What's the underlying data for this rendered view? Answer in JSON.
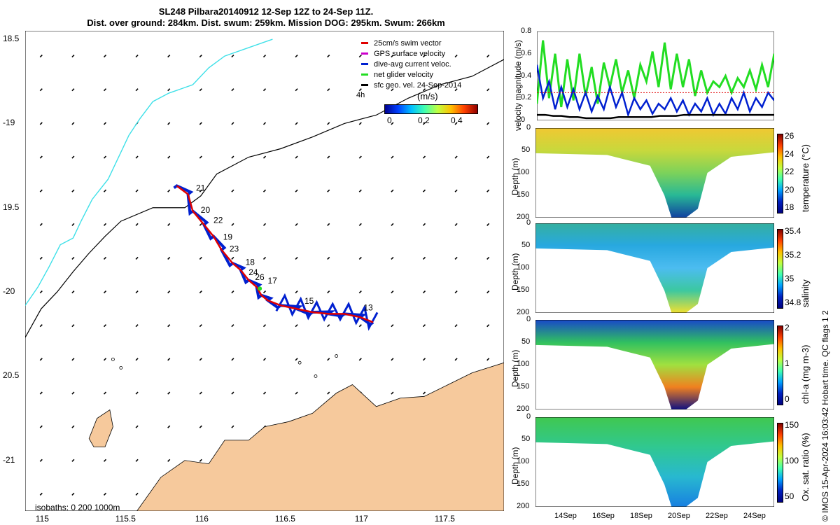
{
  "title_line1": "SL248 Pilbara20140912 12-Sep 12Z to 24-Sep 11Z.",
  "title_line2": "Dist. over ground: 284km. Dist. swum: 259km. Mission DOG: 295km. Swum: 266km",
  "copyright": "© IMOS 15-Apr-2024 16:03:42 Hobart time. QC flags 1  2",
  "colors": {
    "land": "#f6c99c",
    "track": "#e00000",
    "current": "#0020d0",
    "net": "#22dd22",
    "cyan": "#3ee0e8",
    "ocean": "#ffffff"
  },
  "chart_data": [
    {
      "type": "map",
      "name": "track-map",
      "xlim": [
        114.9,
        117.9
      ],
      "ylim": [
        -21.3,
        -18.45
      ],
      "xticks": [
        115,
        115.5,
        116,
        116.5,
        117,
        117.5
      ],
      "xtick_labels": [
        "115",
        "115.5",
        "116",
        "116.5",
        "117",
        "117.5"
      ],
      "yticks": [
        -18.5,
        -19,
        -19.5,
        -20,
        -20.5,
        -21
      ],
      "ytick_labels": [
        "18.5",
        "-19",
        "19.5",
        "-20",
        "20.5",
        "-21"
      ],
      "legend": {
        "placement": "top-right",
        "entries": [
          {
            "label": "25cm/s swim vector",
            "color": "#e00000"
          },
          {
            "label": "GPS surface velocity",
            "color": "#cc00cc"
          },
          {
            "label": "dive-avg current veloc.",
            "color": "#0020d0"
          },
          {
            "label": "net glider velocity",
            "color": "#22dd22"
          },
          {
            "label": "sfc geo. vel. 24-Sep-2014",
            "color": "#000000"
          }
        ],
        "note": "4h"
      },
      "colorbar": {
        "label": "(m/s)",
        "ticks": [
          "0",
          "0.2",
          "0.4"
        ],
        "range": [
          -0.05,
          0.5
        ]
      },
      "isobath_label": "isobaths: 0   200  1000m",
      "track": [
        [
          115.85,
          -19.37
        ],
        [
          115.92,
          -19.42
        ],
        [
          115.95,
          -19.52
        ],
        [
          116.02,
          -19.6
        ],
        [
          116.08,
          -19.67
        ],
        [
          116.13,
          -19.75
        ],
        [
          116.2,
          -19.83
        ],
        [
          116.25,
          -19.87
        ],
        [
          116.3,
          -19.93
        ],
        [
          116.35,
          -19.97
        ],
        [
          116.38,
          -20.02
        ],
        [
          116.42,
          -20.05
        ],
        [
          116.5,
          -20.08
        ],
        [
          116.6,
          -20.1
        ],
        [
          116.7,
          -20.12
        ],
        [
          116.8,
          -20.13
        ],
        [
          116.9,
          -20.13
        ],
        [
          117.0,
          -20.15
        ],
        [
          117.08,
          -20.18
        ]
      ],
      "day_labels": [
        {
          "text": "21",
          "lon": 115.97,
          "lat": -19.4
        },
        {
          "text": "20",
          "lon": 116.0,
          "lat": -19.53
        },
        {
          "text": "22",
          "lon": 116.08,
          "lat": -19.59
        },
        {
          "text": "19",
          "lon": 116.14,
          "lat": -19.69
        },
        {
          "text": "23",
          "lon": 116.18,
          "lat": -19.76
        },
        {
          "text": "18",
          "lon": 116.28,
          "lat": -19.84
        },
        {
          "text": "24",
          "lon": 116.3,
          "lat": -19.9
        },
        {
          "text": "26",
          "lon": 116.34,
          "lat": -19.93
        },
        {
          "text": "17",
          "lon": 116.42,
          "lat": -19.95
        },
        {
          "text": "15",
          "lon": 116.65,
          "lat": -20.07
        },
        {
          "text": "13",
          "lon": 117.02,
          "lat": -20.11
        }
      ],
      "isobath_1000": [
        [
          114.9,
          -20.27
        ],
        [
          115.0,
          -20.1
        ],
        [
          115.1,
          -20.0
        ],
        [
          115.2,
          -19.88
        ],
        [
          115.3,
          -19.77
        ],
        [
          115.4,
          -19.67
        ],
        [
          115.5,
          -19.58
        ],
        [
          115.7,
          -19.5
        ],
        [
          115.9,
          -19.5
        ],
        [
          116.0,
          -19.43
        ],
        [
          116.1,
          -19.3
        ],
        [
          116.3,
          -19.2
        ],
        [
          116.5,
          -19.15
        ],
        [
          116.7,
          -19.08
        ],
        [
          116.9,
          -19.0
        ],
        [
          117.1,
          -18.95
        ],
        [
          117.3,
          -18.85
        ],
        [
          117.5,
          -18.77
        ],
        [
          117.7,
          -18.72
        ],
        [
          117.9,
          -18.62
        ]
      ],
      "isobath_cyan": [
        [
          114.9,
          -20.08
        ],
        [
          114.98,
          -19.97
        ],
        [
          115.05,
          -19.85
        ],
        [
          115.12,
          -19.72
        ],
        [
          115.2,
          -19.68
        ],
        [
          115.25,
          -19.58
        ],
        [
          115.32,
          -19.45
        ],
        [
          115.42,
          -19.33
        ],
        [
          115.5,
          -19.17
        ],
        [
          115.55,
          -19.07
        ],
        [
          115.62,
          -18.97
        ],
        [
          115.7,
          -18.87
        ],
        [
          115.8,
          -18.82
        ],
        [
          115.95,
          -18.77
        ],
        [
          116.05,
          -18.67
        ],
        [
          116.15,
          -18.6
        ],
        [
          116.3,
          -18.55
        ],
        [
          116.45,
          -18.5
        ]
      ]
    },
    {
      "type": "line",
      "name": "velocity-magnitude",
      "ylabel": "velocity magnitude (m/s)",
      "ylim": [
        0,
        0.8
      ],
      "yticks": [
        "0",
        "0.2",
        "0.4",
        "0.6",
        "0.8"
      ],
      "series": [
        {
          "name": "net glider velocity",
          "color": "#22dd22",
          "values": [
            0.15,
            0.72,
            0.2,
            0.6,
            0.12,
            0.55,
            0.18,
            0.6,
            0.22,
            0.48,
            0.15,
            0.52,
            0.3,
            0.55,
            0.25,
            0.45,
            0.2,
            0.5,
            0.35,
            0.62,
            0.3,
            0.7,
            0.28,
            0.6,
            0.3,
            0.55,
            0.22,
            0.45,
            0.25,
            0.35,
            0.3,
            0.4,
            0.25,
            0.38,
            0.3,
            0.45,
            0.28,
            0.5,
            0.3,
            0.6
          ]
        },
        {
          "name": "dive-avg current",
          "color": "#0020d0",
          "values": [
            0.5,
            0.2,
            0.35,
            0.1,
            0.3,
            0.12,
            0.28,
            0.1,
            0.25,
            0.08,
            0.22,
            0.1,
            0.3,
            0.12,
            0.25,
            0.05,
            0.2,
            0.1,
            0.18,
            0.06,
            0.15,
            0.1,
            0.2,
            0.08,
            0.18,
            0.05,
            0.15,
            0.08,
            0.2,
            0.05,
            0.15,
            0.06,
            0.2,
            0.1,
            0.25,
            0.08,
            0.2,
            0.12,
            0.25,
            0.18
          ]
        },
        {
          "name": "sfc geo. vel.",
          "color": "#000000",
          "values": [
            0.05,
            0.05,
            0.04,
            0.04,
            0.03,
            0.03,
            0.02,
            0.02,
            0.02,
            0.02,
            0.03,
            0.03,
            0.03,
            0.03,
            0.03,
            0.04,
            0.04,
            0.04,
            0.05,
            0.05,
            0.05,
            0.05,
            0.05,
            0.05,
            0.05,
            0.05,
            0.05,
            0.05,
            0.05,
            0.05
          ]
        },
        {
          "name": "25cm/s swim",
          "color": "#e00000",
          "values": [
            0.25
          ]
        }
      ]
    },
    {
      "type": "heatmap",
      "name": "temperature-section",
      "ylabel": "Depth (m)",
      "colorbar_label": "temperature (°C)",
      "ylim": [
        0,
        200
      ],
      "yticks": [
        "0",
        "50",
        "100",
        "150",
        "200"
      ],
      "cbar_ticks": [
        "26",
        "24",
        "22",
        "20",
        "18"
      ],
      "colors": [
        "#f0c832",
        "#c8d83c",
        "#7cd25a",
        "#28b896",
        "#1040a0"
      ]
    },
    {
      "type": "heatmap",
      "name": "salinity-section",
      "ylabel": "Depth (m)",
      "colorbar_label": "salinity",
      "ylim": [
        0,
        200
      ],
      "yticks": [
        "0",
        "50",
        "100",
        "150",
        "200"
      ],
      "cbar_ticks": [
        "35.4",
        "35.2",
        "35",
        "34.8"
      ],
      "colors": [
        "#34b0a0",
        "#28a8e0",
        "#4cbcf0",
        "#3cc8a0",
        "#f0e030"
      ]
    },
    {
      "type": "heatmap",
      "name": "chla-section",
      "ylabel": "Depth (m)",
      "colorbar_label": "chl-a (mg m-3)",
      "ylim": [
        0,
        200
      ],
      "yticks": [
        "0",
        "50",
        "100",
        "150",
        "200"
      ],
      "cbar_ticks": [
        "2",
        "1",
        "0"
      ],
      "colors": [
        "#1848c8",
        "#30c060",
        "#a0e040",
        "#f08020",
        "#101080"
      ]
    },
    {
      "type": "heatmap",
      "name": "oxygen-section",
      "ylabel": "Depth (m)",
      "colorbar_label": "Ox. sat. ratio (%)",
      "ylim": [
        0,
        200
      ],
      "yticks": [
        "0",
        "50",
        "100",
        "150",
        "200"
      ],
      "cbar_ticks": [
        "150",
        "100",
        "50"
      ],
      "colors": [
        "#40c850",
        "#30c890",
        "#28b8d0",
        "#1880e0"
      ]
    }
  ],
  "time_axis": {
    "ticks": [
      "14Sep",
      "16Sep",
      "18Sep",
      "20Sep",
      "22Sep",
      "24Sep"
    ]
  }
}
